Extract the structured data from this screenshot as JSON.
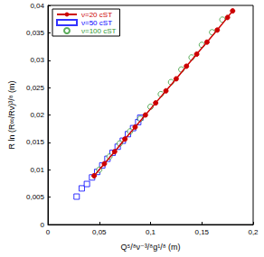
{
  "chart_data": {
    "type": "scatter",
    "x_label": "Q⁵/⁸ν⁻³/⁸g¹/⁸ (m)",
    "y_label": "R ln (R∞/Rν)³/⁸ (m)",
    "xlim": [
      0,
      0.2
    ],
    "ylim": [
      0,
      0.04
    ],
    "xticks": [
      0,
      {
        "value": 0.05,
        "label": "0,05"
      },
      {
        "value": 0.1,
        "label": "0,1"
      },
      {
        "value": 0.15,
        "label": "0,15"
      },
      {
        "value": 0.2,
        "label": "0,2"
      }
    ],
    "yticks": [
      0,
      {
        "value": 0.005,
        "label": "0,005"
      },
      {
        "value": 0.01,
        "label": "0,01"
      },
      {
        "value": 0.015,
        "label": "0,015"
      },
      {
        "value": 0.02,
        "label": "0,02"
      },
      {
        "value": 0.025,
        "label": "0,025"
      },
      {
        "value": 0.03,
        "label": "0,03"
      },
      {
        "value": 0.035,
        "label": "0,035"
      },
      {
        "value": 0.04,
        "label": "0,04"
      }
    ],
    "grid": false,
    "legend": "upper left",
    "series": [
      {
        "name": "ν=20 cST",
        "color": "#cc0000",
        "marker": "circle",
        "line_style": "solid",
        "x": [
          0.045,
          0.055,
          0.065,
          0.075,
          0.085,
          0.095,
          0.105,
          0.115,
          0.125,
          0.135,
          0.145,
          0.155,
          0.165,
          0.175,
          0.18
        ],
        "values": [
          0.0089,
          0.0111,
          0.0133,
          0.0156,
          0.0178,
          0.02,
          0.0222,
          0.0244,
          0.0266,
          0.0289,
          0.0311,
          0.0333,
          0.0355,
          0.0378,
          0.039
        ]
      },
      {
        "name": "ν=50 cST",
        "color": "#0000ff",
        "marker": "square_open",
        "line_style": "none",
        "x": [
          0.028,
          0.033,
          0.038,
          0.043,
          0.048,
          0.053,
          0.058,
          0.063,
          0.068,
          0.073,
          0.078,
          0.083,
          0.088,
          0.09
        ],
        "values": [
          0.0051,
          0.0066,
          0.0074,
          0.0086,
          0.0096,
          0.0108,
          0.012,
          0.0131,
          0.0142,
          0.0153,
          0.0165,
          0.0176,
          0.0187,
          0.0195
        ]
      },
      {
        "name": "ν=100 cST",
        "color": "#339933",
        "marker": "circle_open",
        "line_style": "none",
        "x": [
          0.05,
          0.06,
          0.07,
          0.08,
          0.09,
          0.1,
          0.11,
          0.12,
          0.13,
          0.14,
          0.15,
          0.16,
          0.17
        ],
        "values": [
          0.01,
          0.0124,
          0.0148,
          0.017,
          0.0193,
          0.0215,
          0.0238,
          0.026,
          0.0283,
          0.0305,
          0.0328,
          0.0351,
          0.0374
        ]
      }
    ]
  }
}
